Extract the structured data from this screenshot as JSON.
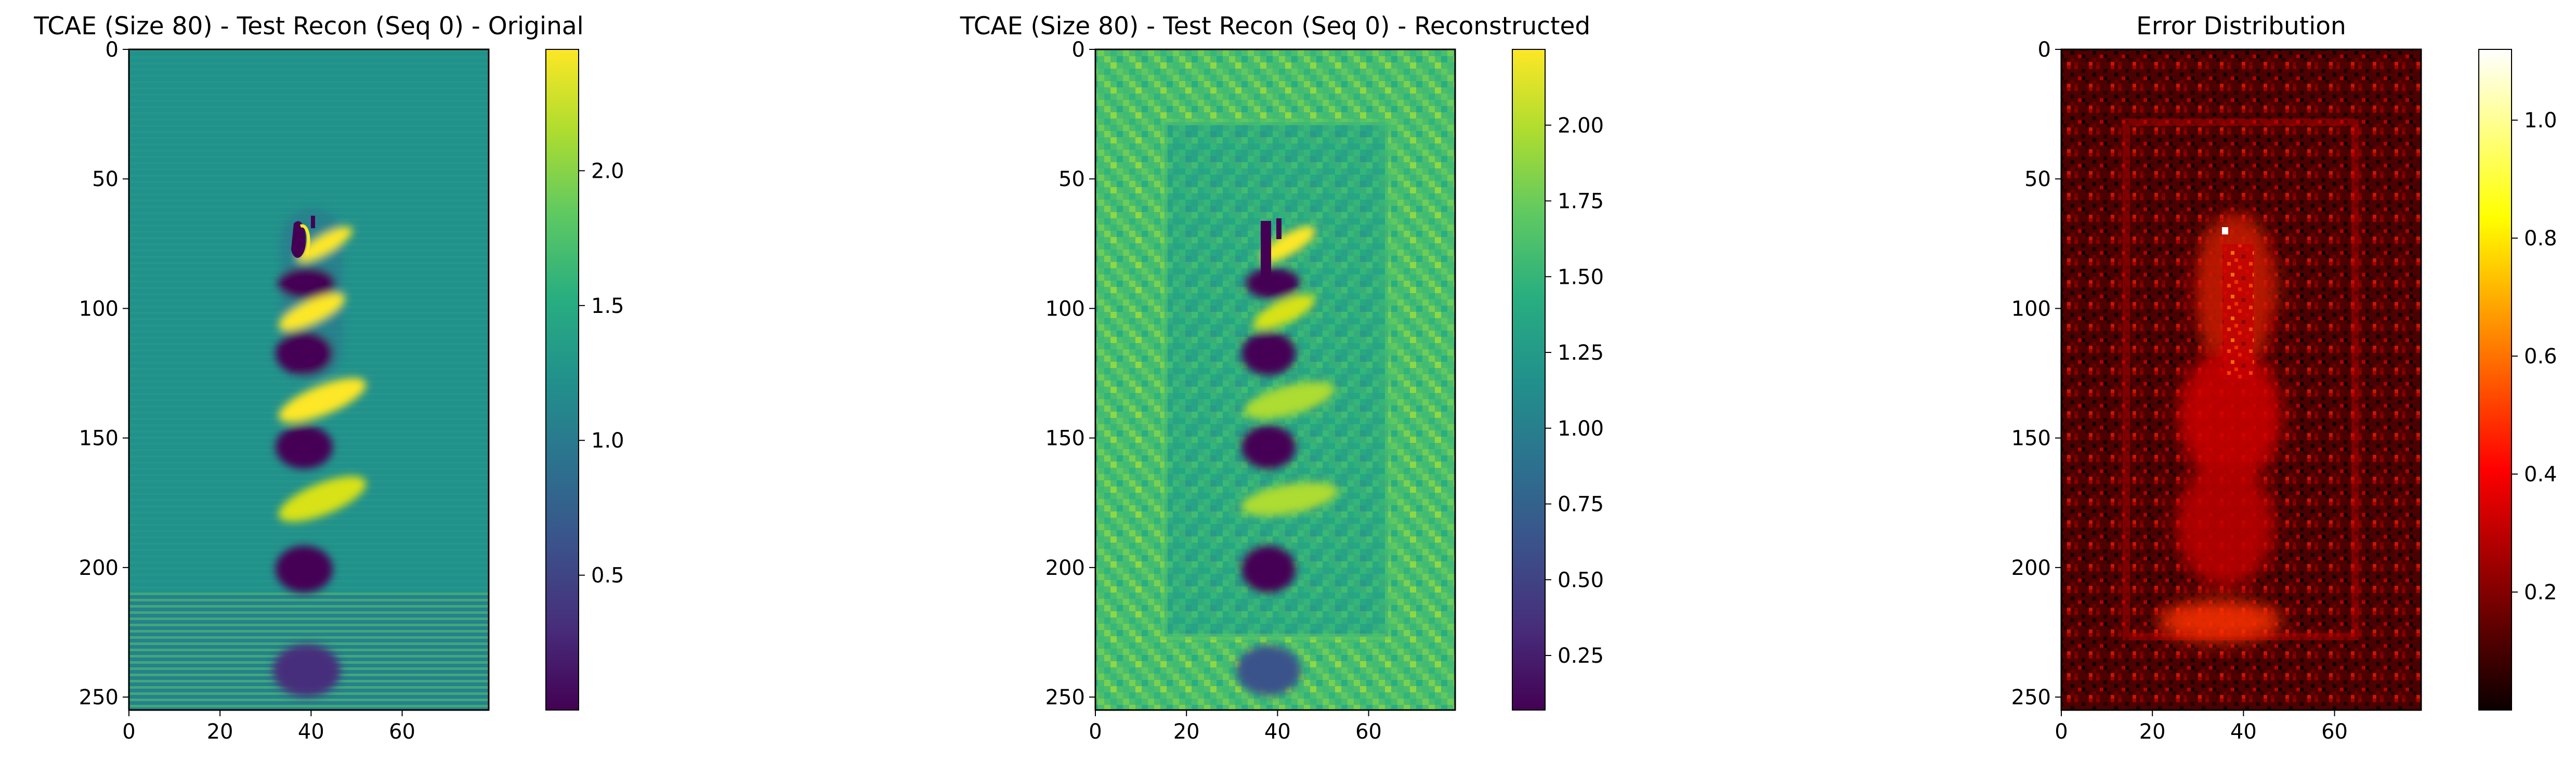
{
  "chart_data": [
    {
      "type": "heatmap",
      "title": "TCAE (Size 80) - Test Recon (Seq 0) - Original",
      "colormap": "viridis",
      "xlim": [
        0,
        79
      ],
      "ylim": [
        255,
        0
      ],
      "xticks": [
        0,
        20,
        40,
        60
      ],
      "yticks": [
        0,
        50,
        100,
        150,
        200,
        250
      ],
      "colorbar": {
        "range": [
          0.0,
          2.45
        ],
        "ticks": [
          "0.5",
          "1.0",
          "1.5",
          "2.0"
        ]
      }
    },
    {
      "type": "heatmap",
      "title": "TCAE (Size 80) - Test Recon (Seq 0) - Reconstructed",
      "colormap": "viridis",
      "xlim": [
        0,
        79
      ],
      "ylim": [
        255,
        0
      ],
      "xticks": [
        0,
        20,
        40,
        60
      ],
      "yticks": [
        0,
        50,
        100,
        150,
        200,
        250
      ],
      "colorbar": {
        "range": [
          0.07,
          2.25
        ],
        "ticks": [
          "0.25",
          "0.50",
          "0.75",
          "1.00",
          "1.25",
          "1.50",
          "1.75",
          "2.00"
        ]
      }
    },
    {
      "type": "heatmap",
      "title": "Error Distribution",
      "colormap": "hot",
      "xlim": [
        0,
        79
      ],
      "ylim": [
        255,
        0
      ],
      "xticks": [
        0,
        20,
        40,
        60
      ],
      "yticks": [
        0,
        50,
        100,
        150,
        200,
        250
      ],
      "colorbar": {
        "range": [
          0.0,
          1.12
        ],
        "ticks": [
          "0.2",
          "0.4",
          "0.6",
          "0.8",
          "1.0"
        ]
      }
    }
  ]
}
